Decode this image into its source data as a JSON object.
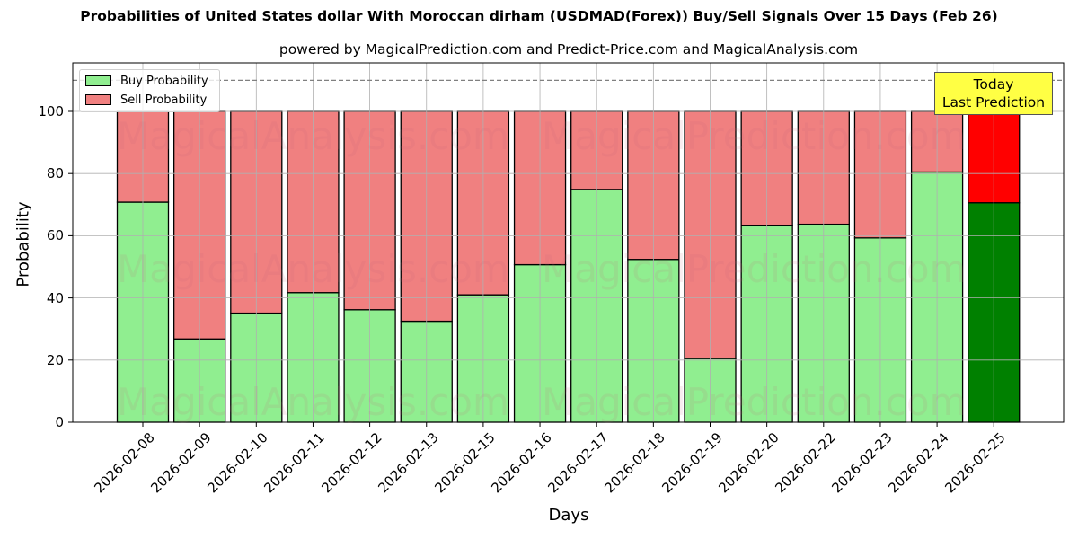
{
  "chart_data": {
    "type": "bar",
    "stacked": true,
    "title": "Probabilities of United States dollar With Moroccan dirham (USDMAD(Forex)) Buy/Sell Signals Over 15 Days (Feb 26)",
    "subtitle": "powered by MagicalPrediction.com and Predict-Price.com and MagicalAnalysis.com",
    "xlabel": "Days",
    "ylabel": "Probability",
    "ylim": [
      0,
      115
    ],
    "yticks": [
      0,
      20,
      40,
      60,
      80,
      100
    ],
    "grid": true,
    "legend_position": "upper left",
    "reference_line": {
      "y": 110,
      "style": "dashed",
      "color": "#808080"
    },
    "categories": [
      "2026-02-08",
      "2026-02-09",
      "2026-02-10",
      "2026-02-11",
      "2026-02-12",
      "2026-02-13",
      "2026-02-15",
      "2026-02-16",
      "2026-02-17",
      "2026-02-18",
      "2026-02-19",
      "2026-02-20",
      "2026-02-22",
      "2026-02-23",
      "2026-02-24",
      "2026-02-25"
    ],
    "series": [
      {
        "name": "Buy Probability",
        "color": "#90ee90",
        "values": [
          70.8,
          26.8,
          35.1,
          41.7,
          36.2,
          32.5,
          41.0,
          50.7,
          74.9,
          52.4,
          20.5,
          63.2,
          63.7,
          59.3,
          80.5,
          70.6
        ]
      },
      {
        "name": "Sell Probability",
        "color": "#f08080",
        "values": [
          29.2,
          73.2,
          64.9,
          58.3,
          63.8,
          67.5,
          59.0,
          49.3,
          25.1,
          47.6,
          79.5,
          36.8,
          36.3,
          40.7,
          19.5,
          29.4
        ]
      }
    ],
    "highlight": {
      "index": 15,
      "buy_color": "#008000",
      "sell_color": "#ff0000"
    },
    "annotation": {
      "text_line1": "Today",
      "text_line2": "Last Prediction",
      "background": "#ffff44"
    }
  },
  "watermarks": [
    "MagicalAnalysis.com",
    "MagicalPrediction.com"
  ]
}
